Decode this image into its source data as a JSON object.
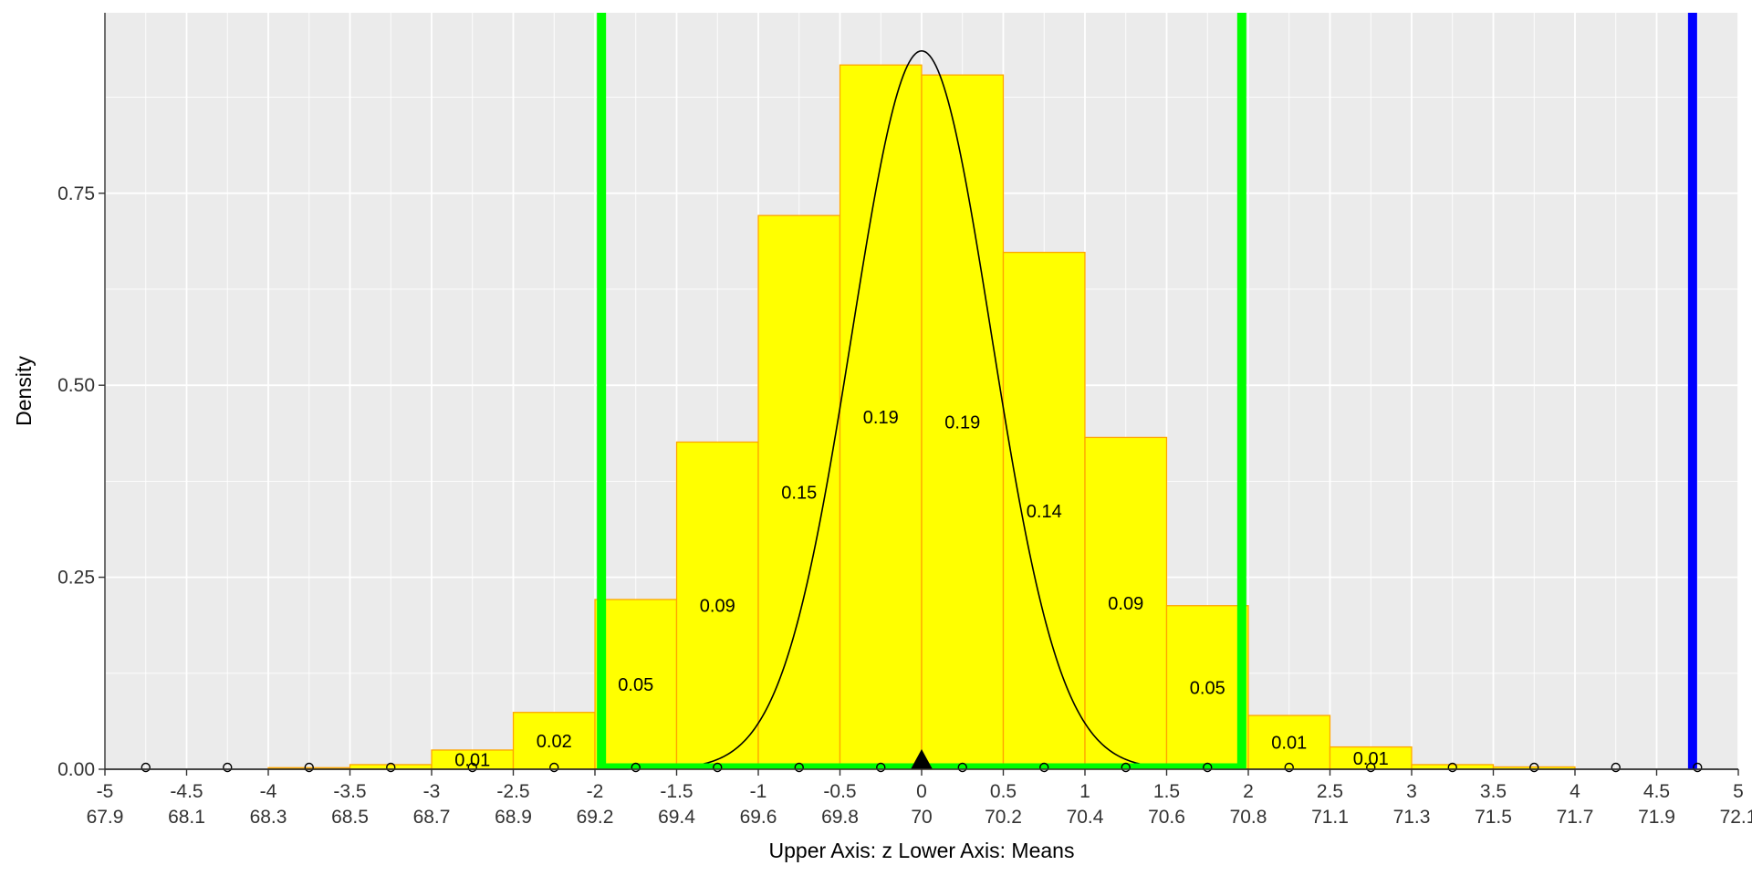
{
  "chart_data": {
    "type": "bar",
    "subtype": "histogram with normal density overlay",
    "xlabel": "Upper Axis: z Lower Axis:  Means",
    "ylabel": "Density",
    "xlim": [
      -5,
      5
    ],
    "ylim": [
      0,
      0.985
    ],
    "y_ticks": [
      0,
      0.25,
      0.5,
      0.75
    ],
    "y_tick_labels": [
      "0.00",
      "0.25",
      "0.50",
      "0.75"
    ],
    "upper_axis": {
      "name": "z",
      "ticks": [
        "-5",
        "-4.5",
        "-4",
        "-3.5",
        "-3",
        "-2.5",
        "-2",
        "-1.5",
        "-1",
        "-0.5",
        "0",
        "0.5",
        "1",
        "1.5",
        "2",
        "2.5",
        "3",
        "3.5",
        "4",
        "4.5",
        "5"
      ]
    },
    "lower_axis": {
      "name": "Means",
      "ticks": [
        "67.9",
        "68.1",
        "68.3",
        "68.5",
        "68.7",
        "68.9",
        "69.2",
        "69.4",
        "69.6",
        "69.8",
        "70",
        "70.2",
        "70.4",
        "70.6",
        "70.8",
        "71.1",
        "71.3",
        "71.5",
        "71.7",
        "71.9",
        "72.1"
      ]
    },
    "bins": [
      {
        "x0": -4.0,
        "x1": -3.5,
        "density": 0.002,
        "label": ""
      },
      {
        "x0": -3.5,
        "x1": -3.0,
        "density": 0.006,
        "label": ""
      },
      {
        "x0": -3.0,
        "x1": -2.5,
        "density": 0.025,
        "label": "0.01"
      },
      {
        "x0": -2.5,
        "x1": -2.0,
        "density": 0.074,
        "label": "0.02"
      },
      {
        "x0": -2.0,
        "x1": -1.5,
        "density": 0.221,
        "label": "0.05"
      },
      {
        "x0": -1.5,
        "x1": -1.0,
        "density": 0.426,
        "label": "0.09"
      },
      {
        "x0": -1.0,
        "x1": -0.5,
        "density": 0.721,
        "label": "0.15"
      },
      {
        "x0": -0.5,
        "x1": 0.0,
        "density": 0.917,
        "label": "0.19"
      },
      {
        "x0": 0.0,
        "x1": 0.5,
        "density": 0.904,
        "label": "0.19"
      },
      {
        "x0": 0.5,
        "x1": 1.0,
        "density": 0.673,
        "label": "0.14"
      },
      {
        "x0": 1.0,
        "x1": 1.5,
        "density": 0.432,
        "label": "0.09"
      },
      {
        "x0": 1.5,
        "x1": 2.0,
        "density": 0.213,
        "label": "0.05"
      },
      {
        "x0": 2.0,
        "x1": 2.5,
        "density": 0.07,
        "label": "0.01"
      },
      {
        "x0": 2.5,
        "x1": 3.0,
        "density": 0.029,
        "label": "0.01"
      },
      {
        "x0": 3.0,
        "x1": 3.5,
        "density": 0.006,
        "label": ""
      },
      {
        "x0": 3.5,
        "x1": 4.0,
        "density": 0.003,
        "label": ""
      }
    ],
    "curve": {
      "type": "normal",
      "mean": 0,
      "sd": 0.4265
    },
    "critical_lines": [
      -1.96,
      1.96
    ],
    "observed_line": 4.72,
    "mean_marker": 0,
    "point_markers": [
      -4.75,
      -4.25,
      -3.75,
      -3.25,
      -2.75,
      -2.25,
      -1.75,
      -1.25,
      -0.75,
      -0.25,
      0.25,
      0.75,
      1.25,
      1.75,
      2.25,
      2.75,
      3.25,
      3.75,
      4.25,
      4.75
    ],
    "grid": true,
    "colors": {
      "panel": "#EBEBEB",
      "grid": "#FFFFFF",
      "bar_fill": "#FFFF00",
      "bar_outline": "#FFA500",
      "curve": "#000000",
      "critical": "#00FF00",
      "observed": "#0000FF"
    }
  }
}
